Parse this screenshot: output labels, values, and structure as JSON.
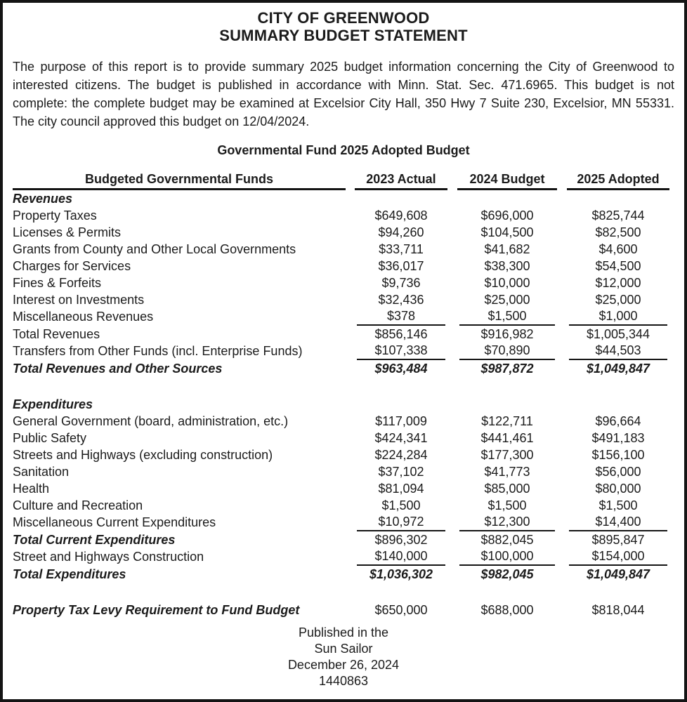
{
  "title": {
    "line1": "CITY OF GREENWOOD",
    "line2": "SUMMARY BUDGET STATEMENT"
  },
  "intro": "The purpose of this report is to provide summary 2025 budget information concerning the City of Greenwood to interested citizens. The budget is published in accordance with Minn. Stat. Sec. 471.6965. This budget is not complete: the complete budget may be examined at Excelsior City Hall, 350 Hwy 7 Suite 230, Excelsior, MN 55331. The city council approved this budget on 12/04/2024.",
  "table": {
    "caption": "Governmental Fund 2025 Adopted Budget",
    "columns": [
      "Budgeted Governmental Funds",
      "2023 Actual",
      "2024 Budget",
      "2025 Adopted"
    ],
    "rows": [
      {
        "style": "sec",
        "label": "Revenues",
        "values": null
      },
      {
        "style": "item",
        "label": "Property Taxes",
        "values": [
          "$649,608",
          "$696,000",
          "$825,744"
        ]
      },
      {
        "style": "item",
        "label": "Licenses & Permits",
        "values": [
          "$94,260",
          "$104,500",
          "$82,500"
        ]
      },
      {
        "style": "item",
        "label": "Grants from County and Other Local Governments",
        "values": [
          "$33,711",
          "$41,682",
          "$4,600"
        ]
      },
      {
        "style": "item",
        "label": "Charges for Services",
        "values": [
          "$36,017",
          "$38,300",
          "$54,500"
        ]
      },
      {
        "style": "item",
        "label": "Fines & Forfeits",
        "values": [
          "$9,736",
          "$10,000",
          "$12,000"
        ]
      },
      {
        "style": "item",
        "label": "Interest on Investments",
        "values": [
          "$32,436",
          "$25,000",
          "$25,000"
        ]
      },
      {
        "style": "item",
        "label": "Miscellaneous Revenues",
        "values": [
          "$378",
          "$1,500",
          "$1,000"
        ],
        "rule_below": true
      },
      {
        "style": "item",
        "label": "Total Revenues",
        "values": [
          "$856,146",
          "$916,982",
          "$1,005,344"
        ]
      },
      {
        "style": "item",
        "label": "Transfers from Other Funds (incl. Enterprise Funds)",
        "values": [
          "$107,338",
          "$70,890",
          "$44,503"
        ],
        "rule_below": true
      },
      {
        "style": "grand",
        "label": "Total Revenues and Other Sources",
        "values": [
          "$963,484",
          "$987,872",
          "$1,049,847"
        ]
      },
      {
        "style": "spacer"
      },
      {
        "style": "sec",
        "label": "Expenditures",
        "values": null
      },
      {
        "style": "item",
        "label": "General Government (board, administration, etc.)",
        "values": [
          "$117,009",
          "$122,711",
          "$96,664"
        ]
      },
      {
        "style": "item",
        "label": "Public Safety",
        "values": [
          "$424,341",
          "$441,461",
          "$491,183"
        ]
      },
      {
        "style": "item",
        "label": "Streets and Highways (excluding construction)",
        "values": [
          "$224,284",
          "$177,300",
          "$156,100"
        ]
      },
      {
        "style": "item",
        "label": "Sanitation",
        "values": [
          "$37,102",
          "$41,773",
          "$56,000"
        ]
      },
      {
        "style": "item",
        "label": "Health",
        "values": [
          "$81,094",
          "$85,000",
          "$80,000"
        ]
      },
      {
        "style": "item",
        "label": "Culture and Recreation",
        "values": [
          "$1,500",
          "$1,500",
          "$1,500"
        ]
      },
      {
        "style": "item",
        "label": "Miscellaneous Current Expenditures",
        "values": [
          "$10,972",
          "$12,300",
          "$14,400"
        ],
        "rule_below": true
      },
      {
        "style": "emph",
        "label": "Total Current Expenditures",
        "values": [
          "$896,302",
          "$882,045",
          "$895,847"
        ]
      },
      {
        "style": "item",
        "label": "Street and Highways Construction",
        "values": [
          "$140,000",
          "$100,000",
          "$154,000"
        ],
        "rule_below": true
      },
      {
        "style": "grand",
        "label": "Total Expenditures",
        "values": [
          "$1,036,302",
          "$982,045",
          "$1,049,847"
        ]
      },
      {
        "style": "spacer"
      },
      {
        "style": "emph",
        "label": "Property Tax Levy Requirement to Fund Budget",
        "values": [
          "$650,000",
          "$688,000",
          "$818,044"
        ]
      }
    ]
  },
  "footer": {
    "lines": [
      "Published in the",
      "Sun Sailor",
      "December 26, 2024",
      "1440863"
    ]
  }
}
